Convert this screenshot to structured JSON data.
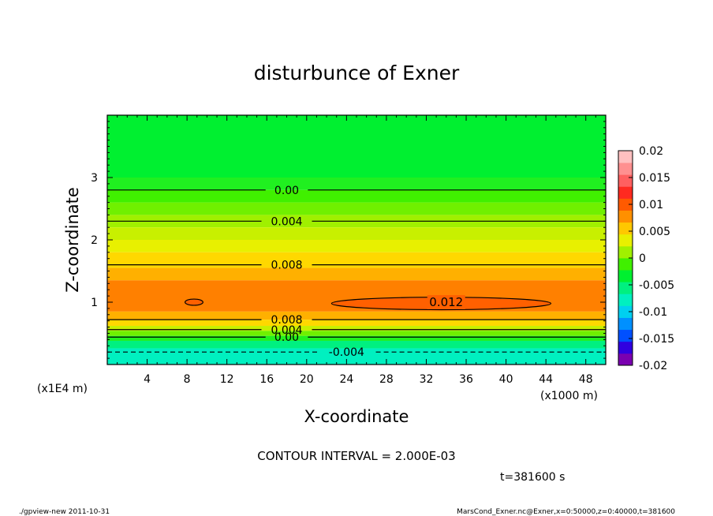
{
  "chart_data": {
    "type": "heatmap",
    "title": "disturbunce of Exner",
    "xlabel": "X-coordinate",
    "ylabel": "Z-coordinate",
    "x_unit": "(x1000 m)",
    "y_unit": "(x1E4 m)",
    "xlim": [
      0,
      50
    ],
    "ylim": [
      0,
      4
    ],
    "x_ticks": [
      4,
      8,
      12,
      16,
      20,
      24,
      28,
      32,
      36,
      40,
      44,
      48
    ],
    "y_ticks": [
      1,
      2,
      3
    ],
    "colorbar": {
      "min": -0.02,
      "max": 0.02,
      "tick_labels": [
        "0.02",
        "0.015",
        "0.01",
        "0.005",
        "0",
        "-0.005",
        "-0.01",
        "-0.015",
        "-0.02"
      ],
      "colors": [
        "#7a00b0",
        "#3000e0",
        "#0050ff",
        "#0090ff",
        "#00d0f0",
        "#00f0c0",
        "#00f080",
        "#00f030",
        "#40f000",
        "#a0f000",
        "#e8f000",
        "#ffc800",
        "#ff9000",
        "#ff5a00",
        "#ff2a20",
        "#ff6060",
        "#ff9090",
        "#ffc0c0"
      ]
    },
    "bands": [
      {
        "zmin": 3.0,
        "zmax": 4.0,
        "value": 0.0,
        "color": "#00f030"
      },
      {
        "zmin": 2.8,
        "zmax": 3.0,
        "value": 0.001,
        "color": "#20f020"
      },
      {
        "zmin": 2.6,
        "zmax": 2.8,
        "value": 0.002,
        "color": "#40f000"
      },
      {
        "zmin": 2.4,
        "zmax": 2.6,
        "value": 0.003,
        "color": "#70f000"
      },
      {
        "zmin": 2.2,
        "zmax": 2.4,
        "value": 0.004,
        "color": "#a0f000"
      },
      {
        "zmin": 2.0,
        "zmax": 2.2,
        "value": 0.005,
        "color": "#c8f000"
      },
      {
        "zmin": 1.8,
        "zmax": 2.0,
        "value": 0.006,
        "color": "#e8f000"
      },
      {
        "zmin": 1.55,
        "zmax": 1.8,
        "value": 0.007,
        "color": "#ffd800"
      },
      {
        "zmin": 1.35,
        "zmax": 1.55,
        "value": 0.009,
        "color": "#ffb000"
      },
      {
        "zmin": 0.85,
        "zmax": 1.35,
        "value": 0.011,
        "color": "#ff8000"
      },
      {
        "zmin": 0.72,
        "zmax": 0.85,
        "value": 0.009,
        "color": "#ffb000"
      },
      {
        "zmin": 0.62,
        "zmax": 0.72,
        "value": 0.007,
        "color": "#ffd800"
      },
      {
        "zmin": 0.54,
        "zmax": 0.62,
        "value": 0.005,
        "color": "#c8f000"
      },
      {
        "zmin": 0.46,
        "zmax": 0.54,
        "value": 0.003,
        "color": "#70f000"
      },
      {
        "zmin": 0.38,
        "zmax": 0.46,
        "value": 0.001,
        "color": "#20f020"
      },
      {
        "zmin": 0.26,
        "zmax": 0.38,
        "value": -0.001,
        "color": "#00f080"
      },
      {
        "zmin": 0.0,
        "zmax": 0.26,
        "value": -0.003,
        "color": "#00f0c0"
      }
    ],
    "contours": [
      {
        "level": 0.0,
        "z": 2.8,
        "label": "0.00",
        "label_x": 18
      },
      {
        "level": 0.004,
        "z": 2.3,
        "label": "0.004",
        "label_x": 18
      },
      {
        "level": 0.008,
        "z": 1.6,
        "label": "0.008",
        "label_x": 18
      },
      {
        "level": 0.008,
        "z": 0.72,
        "label": "0.008",
        "label_x": 18
      },
      {
        "level": 0.004,
        "z": 0.56,
        "label": "0.004",
        "label_x": 18
      },
      {
        "level": 0.0,
        "z": 0.44,
        "label": "0.00",
        "label_x": 18
      },
      {
        "level": -0.004,
        "z": 0.2,
        "label": "-0.004",
        "label_x": 24,
        "dashed": true
      }
    ],
    "closed_contours": [
      {
        "level": 0.012,
        "label": "0.012",
        "x0": 22.5,
        "x1": 44.5,
        "z0": 0.88,
        "z1": 1.08,
        "label_x": 34,
        "label_z": 1.0
      },
      {
        "level": 0.012,
        "label": "",
        "x0": 7.8,
        "x1": 9.6,
        "z0": 0.95,
        "z1": 1.05
      }
    ],
    "contour_interval_text": "CONTOUR INTERVAL = 2.000E-03",
    "time_text": "t=381600 s"
  },
  "footer": {
    "left": "./gpview-new  2011-10-31",
    "right": "MarsCond_Exner.nc@Exner,x=0:50000,z=0:40000,t=381600"
  }
}
